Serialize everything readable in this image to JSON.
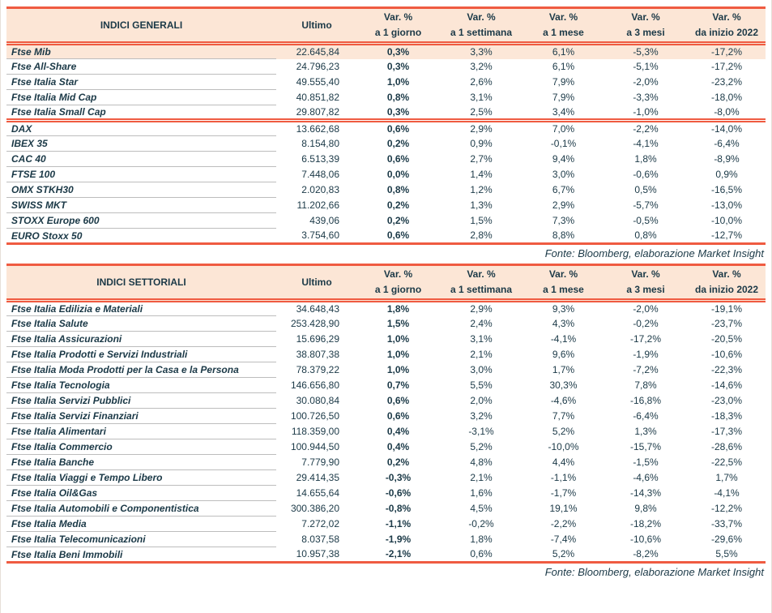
{
  "colors": {
    "accent_red": "#ef5b41",
    "header_bg": "#fce6d6",
    "highlight_bg": "#fce7d8",
    "text_dark": "#1b3947"
  },
  "source_note": "Fonte: Bloomberg, elaborazione Market Insight",
  "columns": {
    "ultimo": "Ultimo",
    "var_label": "Var. %",
    "periods": [
      "a 1 giorno",
      "a 1 settimana",
      "a 1 mese",
      "a 3 mesi",
      "da inizio 2022"
    ]
  },
  "tables": [
    {
      "title": "INDICI GENERALI",
      "rows": [
        {
          "name": "Ftse Mib",
          "ultimo": "22.645,84",
          "d1": "0,3%",
          "w1": "3,3%",
          "m1": "6,1%",
          "m3": "-5,3%",
          "ytd": "-17,2%",
          "row_class": "highlight"
        },
        {
          "name": "Ftse All-Share",
          "ultimo": "24.796,23",
          "d1": "0,3%",
          "w1": "3,2%",
          "m1": "6,1%",
          "m3": "-5,1%",
          "ytd": "-17,2%"
        },
        {
          "name": "Ftse Italia Star",
          "ultimo": "49.555,40",
          "d1": "1,0%",
          "w1": "2,6%",
          "m1": "7,9%",
          "m3": "-2,0%",
          "ytd": "-23,2%"
        },
        {
          "name": "Ftse Italia Mid Cap",
          "ultimo": "40.851,82",
          "d1": "0,8%",
          "w1": "3,1%",
          "m1": "7,9%",
          "m3": "-3,3%",
          "ytd": "-18,0%"
        },
        {
          "name": "Ftse Italia Small Cap",
          "ultimo": "29.807,82",
          "d1": "0,3%",
          "w1": "2,5%",
          "m1": "3,4%",
          "m3": "-1,0%",
          "ytd": "-8,0%"
        },
        {
          "name": "DAX",
          "ultimo": "13.662,68",
          "d1": "0,6%",
          "w1": "2,9%",
          "m1": "7,0%",
          "m3": "-2,2%",
          "ytd": "-14,0%",
          "row_class": "section-start"
        },
        {
          "name": "IBEX 35",
          "ultimo": "8.154,80",
          "d1": "0,2%",
          "w1": "0,9%",
          "m1": "-0,1%",
          "m3": "-4,1%",
          "ytd": "-6,4%"
        },
        {
          "name": "CAC 40",
          "ultimo": "6.513,39",
          "d1": "0,6%",
          "w1": "2,7%",
          "m1": "9,4%",
          "m3": "1,8%",
          "ytd": "-8,9%"
        },
        {
          "name": "FTSE 100",
          "ultimo": "7.448,06",
          "d1": "0,0%",
          "w1": "1,4%",
          "m1": "3,0%",
          "m3": "-0,6%",
          "ytd": "0,9%"
        },
        {
          "name": "OMX STKH30",
          "ultimo": "2.020,83",
          "d1": "0,8%",
          "w1": "1,2%",
          "m1": "6,7%",
          "m3": "0,5%",
          "ytd": "-16,5%"
        },
        {
          "name": "SWISS MKT",
          "ultimo": "11.202,66",
          "d1": "0,2%",
          "w1": "1,3%",
          "m1": "2,9%",
          "m3": "-5,7%",
          "ytd": "-13,0%"
        },
        {
          "name": "STOXX Europe 600",
          "ultimo": "439,06",
          "d1": "0,2%",
          "w1": "1,5%",
          "m1": "7,3%",
          "m3": "-0,5%",
          "ytd": "-10,0%"
        },
        {
          "name": "EURO Stoxx 50",
          "ultimo": "3.754,60",
          "d1": "0,6%",
          "w1": "2,8%",
          "m1": "8,8%",
          "m3": "0,8%",
          "ytd": "-12,7%"
        }
      ]
    },
    {
      "title": "INDICI SETTORIALI",
      "rows": [
        {
          "name": "Ftse Italia Edilizia e Materiali",
          "ultimo": "34.648,43",
          "d1": "1,8%",
          "w1": "2,9%",
          "m1": "9,3%",
          "m3": "-2,0%",
          "ytd": "-19,1%"
        },
        {
          "name": "Ftse Italia Salute",
          "ultimo": "253.428,90",
          "d1": "1,5%",
          "w1": "2,4%",
          "m1": "4,3%",
          "m3": "-0,2%",
          "ytd": "-23,7%"
        },
        {
          "name": "Ftse Italia Assicurazioni",
          "ultimo": "15.696,29",
          "d1": "1,0%",
          "w1": "3,1%",
          "m1": "-4,1%",
          "m3": "-17,2%",
          "ytd": "-20,5%"
        },
        {
          "name": "Ftse Italia Prodotti e Servizi Industriali",
          "ultimo": "38.807,38",
          "d1": "1,0%",
          "w1": "2,1%",
          "m1": "9,6%",
          "m3": "-1,9%",
          "ytd": "-10,6%"
        },
        {
          "name": "Ftse Italia Moda Prodotti per la Casa e la Persona",
          "ultimo": "78.379,22",
          "d1": "1,0%",
          "w1": "3,0%",
          "m1": "1,7%",
          "m3": "-7,2%",
          "ytd": "-22,3%"
        },
        {
          "name": "Ftse Italia Tecnologia",
          "ultimo": "146.656,80",
          "d1": "0,7%",
          "w1": "5,5%",
          "m1": "30,3%",
          "m3": "7,8%",
          "ytd": "-14,6%"
        },
        {
          "name": "Ftse Italia Servizi Pubblici",
          "ultimo": "30.080,84",
          "d1": "0,6%",
          "w1": "2,0%",
          "m1": "-4,6%",
          "m3": "-16,8%",
          "ytd": "-23,0%"
        },
        {
          "name": "Ftse Italia Servizi Finanziari",
          "ultimo": "100.726,50",
          "d1": "0,6%",
          "w1": "3,2%",
          "m1": "7,7%",
          "m3": "-6,4%",
          "ytd": "-18,3%"
        },
        {
          "name": "Ftse Italia Alimentari",
          "ultimo": "118.359,00",
          "d1": "0,4%",
          "w1": "-3,1%",
          "m1": "5,2%",
          "m3": "1,3%",
          "ytd": "-17,3%"
        },
        {
          "name": "Ftse Italia Commercio",
          "ultimo": "100.944,50",
          "d1": "0,4%",
          "w1": "5,2%",
          "m1": "-10,0%",
          "m3": "-15,7%",
          "ytd": "-28,6%"
        },
        {
          "name": "Ftse Italia Banche",
          "ultimo": "7.779,90",
          "d1": "0,2%",
          "w1": "4,8%",
          "m1": "4,4%",
          "m3": "-1,5%",
          "ytd": "-22,5%"
        },
        {
          "name": "Ftse Italia Viaggi e Tempo Libero",
          "ultimo": "29.414,35",
          "d1": "-0,3%",
          "w1": "2,1%",
          "m1": "-1,1%",
          "m3": "-4,6%",
          "ytd": "1,7%"
        },
        {
          "name": "Ftse Italia Oil&Gas",
          "ultimo": "14.655,64",
          "d1": "-0,6%",
          "w1": "1,6%",
          "m1": "-1,7%",
          "m3": "-14,3%",
          "ytd": "-4,1%"
        },
        {
          "name": "Ftse Italia Automobili e Componentistica",
          "ultimo": "300.386,20",
          "d1": "-0,8%",
          "w1": "4,5%",
          "m1": "19,1%",
          "m3": "9,8%",
          "ytd": "-12,2%"
        },
        {
          "name": "Ftse Italia Media",
          "ultimo": "7.272,02",
          "d1": "-1,1%",
          "w1": "-0,2%",
          "m1": "-2,2%",
          "m3": "-18,2%",
          "ytd": "-33,7%"
        },
        {
          "name": "Ftse Italia Telecomunicazioni",
          "ultimo": "8.037,58",
          "d1": "-1,9%",
          "w1": "1,8%",
          "m1": "-7,4%",
          "m3": "-10,6%",
          "ytd": "-29,6%"
        },
        {
          "name": "Ftse Italia Beni Immobili",
          "ultimo": "10.957,38",
          "d1": "-2,1%",
          "w1": "0,6%",
          "m1": "5,2%",
          "m3": "-8,2%",
          "ytd": "5,5%"
        }
      ]
    }
  ]
}
